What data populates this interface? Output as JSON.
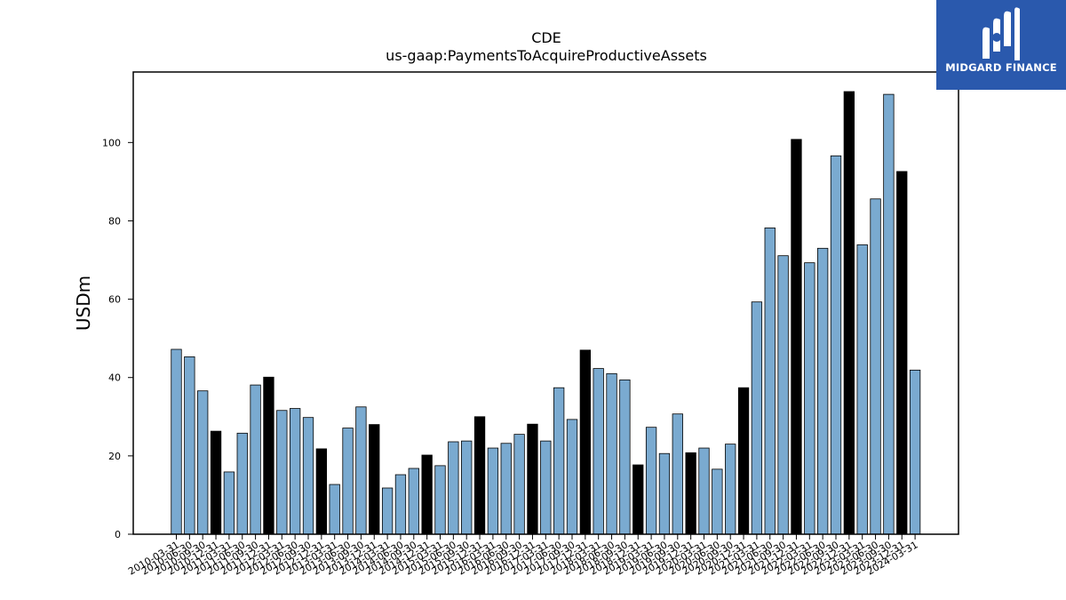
{
  "chart_data": {
    "type": "bar",
    "title": "CDE",
    "subtitle": "us-gaap:PaymentsToAcquireProductiveAssets",
    "ylabel": "USDm",
    "xlabel": "",
    "ylim": [
      0,
      118
    ],
    "yticks": [
      0,
      20,
      40,
      60,
      80,
      100
    ],
    "grid": false,
    "colors": {
      "quarter": "#7aaad0",
      "year_end": "#000000",
      "edge": "#000000"
    },
    "categories": [
      "2010-03-31",
      "2010-06-30",
      "2010-09-30",
      "2010-12-31",
      "2011-03-31",
      "2011-06-30",
      "2011-09-30",
      "2011-12-31",
      "2012-03-31",
      "2012-06-30",
      "2012-09-30",
      "2012-12-31",
      "2013-03-31",
      "2013-06-30",
      "2013-09-30",
      "2013-12-31",
      "2014-03-31",
      "2014-06-30",
      "2014-09-30",
      "2014-12-31",
      "2015-03-31",
      "2015-06-30",
      "2015-09-30",
      "2015-12-31",
      "2016-03-31",
      "2016-06-30",
      "2016-09-30",
      "2016-12-31",
      "2017-03-31",
      "2017-06-30",
      "2017-09-30",
      "2017-12-31",
      "2018-03-31",
      "2018-06-30",
      "2018-09-30",
      "2018-12-31",
      "2019-03-31",
      "2019-06-30",
      "2019-09-30",
      "2019-12-31",
      "2020-03-31",
      "2020-06-30",
      "2020-09-30",
      "2020-12-31",
      "2021-03-31",
      "2021-06-30",
      "2021-09-30",
      "2021-12-31",
      "2022-03-31",
      "2022-06-30",
      "2022-09-30",
      "2022-12-31",
      "2023-03-31",
      "2023-06-30",
      "2023-09-30",
      "2023-12-31",
      "2024-03-31"
    ],
    "values": [
      47.2,
      45.3,
      36.6,
      26.3,
      15.9,
      25.8,
      38.1,
      40.1,
      31.6,
      32.1,
      29.8,
      21.8,
      12.7,
      27.1,
      32.5,
      28.0,
      11.8,
      15.2,
      16.8,
      20.2,
      17.5,
      23.6,
      23.8,
      30.0,
      22.0,
      23.2,
      25.5,
      28.1,
      23.8,
      37.4,
      29.3,
      47.0,
      42.3,
      41.0,
      39.4,
      17.7,
      27.3,
      20.6,
      30.7,
      20.8,
      22.0,
      16.6,
      23.0,
      37.4,
      59.3,
      78.2,
      71.1,
      100.8,
      69.3,
      73.0,
      96.6,
      113.0,
      73.9,
      85.6,
      112.3,
      92.6,
      41.9
    ],
    "year_end": [
      false,
      false,
      false,
      true,
      false,
      false,
      false,
      true,
      false,
      false,
      false,
      true,
      false,
      false,
      false,
      true,
      false,
      false,
      false,
      true,
      false,
      false,
      false,
      true,
      false,
      false,
      false,
      true,
      false,
      false,
      false,
      true,
      false,
      false,
      false,
      true,
      false,
      false,
      false,
      true,
      false,
      false,
      false,
      true,
      false,
      false,
      false,
      true,
      false,
      false,
      false,
      true,
      false,
      false,
      false,
      true,
      false
    ]
  },
  "logo": {
    "text": "MIDGARD FINANCE"
  }
}
